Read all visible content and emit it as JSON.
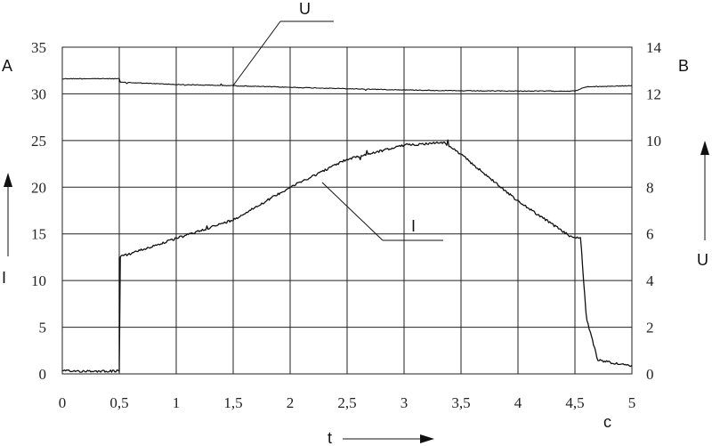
{
  "chart_data": {
    "type": "line",
    "title": "",
    "xlabel": "t",
    "x_unit": "c",
    "ylabel_left": "I",
    "y_unit_left": "A",
    "ylabel_right": "U",
    "y_unit_right": "B",
    "xlim": [
      0,
      5
    ],
    "ylim_left": [
      0,
      35
    ],
    "ylim_right": [
      0,
      14
    ],
    "x_ticks": [
      "0",
      "0,5",
      "1",
      "1,5",
      "2",
      "2,5",
      "3",
      "3,5",
      "4",
      "4,5",
      "5"
    ],
    "y_ticks_left": [
      "0",
      "5",
      "10",
      "15",
      "20",
      "25",
      "30",
      "35"
    ],
    "y_ticks_right": [
      "0",
      "2",
      "4",
      "6",
      "8",
      "10",
      "12",
      "14"
    ],
    "grid": true,
    "series": [
      {
        "name": "U",
        "axis": "right",
        "x": [
          0,
          0.5,
          0.5,
          1.0,
          1.5,
          2.0,
          2.5,
          3.0,
          3.5,
          4.0,
          4.5,
          4.6,
          5.0
        ],
        "y": [
          12.65,
          12.65,
          12.5,
          12.4,
          12.35,
          12.28,
          12.22,
          12.17,
          12.13,
          12.12,
          12.12,
          12.3,
          12.35
        ]
      },
      {
        "name": "I",
        "axis": "left",
        "x": [
          0,
          0.5,
          0.5,
          1.0,
          1.5,
          2.0,
          2.5,
          3.0,
          3.35,
          3.5,
          4.0,
          4.45,
          4.55,
          4.6,
          4.7,
          5.0
        ],
        "y": [
          0.3,
          0.3,
          12.5,
          14.5,
          16.5,
          20.0,
          23.0,
          24.5,
          24.8,
          23.5,
          18.5,
          14.8,
          14.5,
          6.0,
          1.5,
          0.8
        ]
      }
    ]
  }
}
